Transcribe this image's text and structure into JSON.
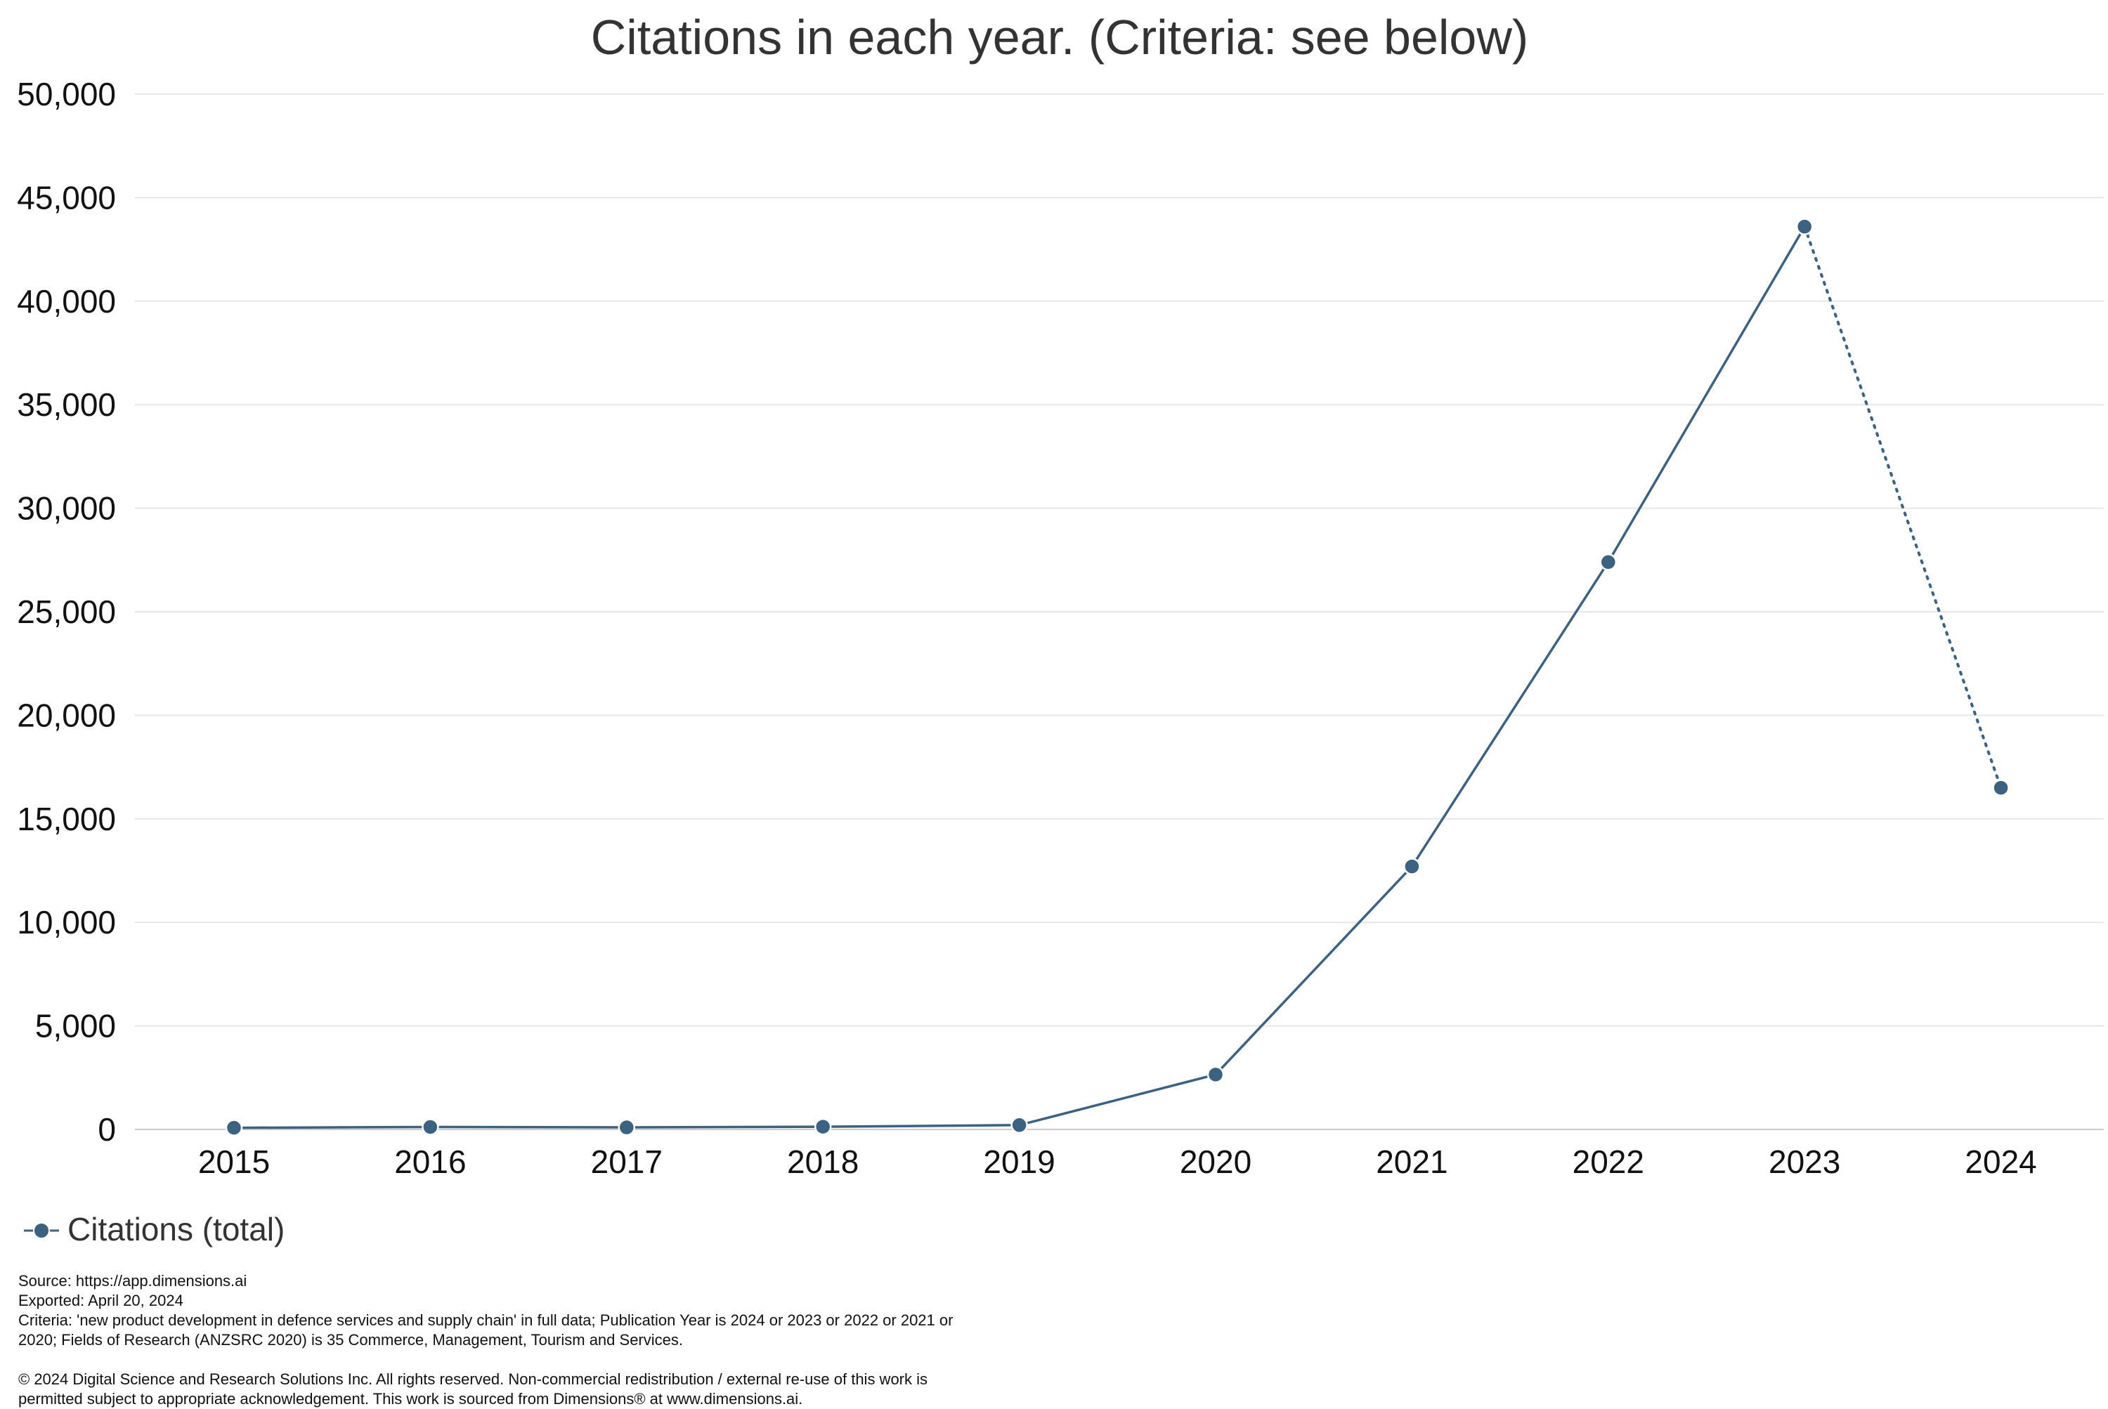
{
  "chart_data": {
    "type": "line",
    "title": "Citations in each year. (Criteria: see below)",
    "xlabel": "",
    "ylabel": "",
    "categories": [
      "2015",
      "2016",
      "2017",
      "2018",
      "2019",
      "2020",
      "2021",
      "2022",
      "2023",
      "2024"
    ],
    "series": [
      {
        "name": "Citations (total)",
        "values": [
          80,
          120,
          100,
          130,
          210,
          2650,
          12700,
          27400,
          43600,
          16500
        ],
        "color": "#3b6281",
        "dotted_last_segment": true
      }
    ],
    "ylim": [
      0,
      50000
    ],
    "yticks": [
      "0",
      "5,000",
      "10,000",
      "15,000",
      "20,000",
      "25,000",
      "30,000",
      "35,000",
      "40,000",
      "45,000",
      "50,000"
    ],
    "ytick_values": [
      0,
      5000,
      10000,
      15000,
      20000,
      25000,
      30000,
      35000,
      40000,
      45000,
      50000
    ],
    "grid": true,
    "legend_position": "bottom-left"
  },
  "colors": {
    "series": "#3b6281",
    "grid": "#e6e6e6",
    "axis": "#cccccc"
  },
  "footer": {
    "source": "Source: https://app.dimensions.ai",
    "exported": "Exported: April 20, 2024",
    "criteria_line1": "Criteria: 'new product development in defence services and supply chain' in full data; Publication Year is 2024 or 2023 or 2022 or 2021 or",
    "criteria_line2": "2020; Fields of Research (ANZSRC 2020) is 35 Commerce, Management, Tourism and Services.",
    "copyright_line1": "© 2024 Digital Science and Research Solutions Inc. All rights reserved. Non-commercial redistribution / external re-use of this work is",
    "copyright_line2": "permitted subject to appropriate acknowledgement. This work is sourced from Dimensions® at www.dimensions.ai."
  }
}
